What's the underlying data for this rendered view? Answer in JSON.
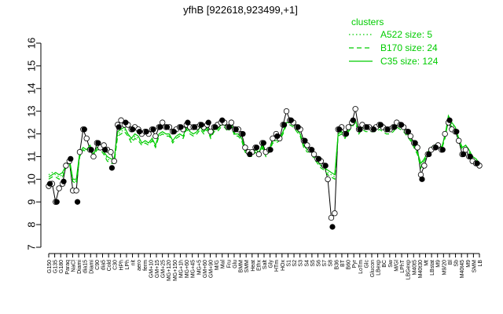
{
  "chart_data": {
    "type": "line",
    "title": "yfhB [922618,923499,+1]",
    "ylim": [
      7,
      16
    ],
    "y_ticks": [
      7,
      8,
      9,
      10,
      11,
      12,
      13,
      14,
      15,
      16
    ],
    "x_tick_labels": [
      "G150",
      "G135",
      "G180",
      "Paraq",
      "NaCl",
      "Diami",
      "dia15",
      "Diami",
      "C90",
      "dia5",
      "Cold",
      "C30",
      "HPh",
      "LPh",
      "nit",
      "aero",
      "ferm",
      "GM+10",
      "GM+15",
      "GM+25",
      "MG+120",
      "MG+150",
      "MG+1h",
      "MG+60",
      "MG+45",
      "MG+5",
      "GM+60",
      "GM+90",
      "M/G",
      "Mal",
      "Fru",
      "Glu",
      "BMM",
      "SMM",
      "Heat",
      "Ethx",
      "Salt",
      "Gly",
      "HTm",
      "HOx",
      "S1",
      "S2",
      "S3",
      "S4",
      "S5",
      "S6",
      "S7",
      "S8",
      "B36",
      "BT",
      "B60",
      "Pyr",
      "LoTm",
      "Glc",
      "Glucon",
      "LBexp",
      "BC",
      "Sw",
      "M/Gl",
      "LPhT",
      "LBGexp",
      "M40t5",
      "M40t30",
      "Mt",
      "LBstat",
      "M9",
      "M9/20",
      "Bl",
      "Sb",
      "M40t45",
      "M9",
      "SMM",
      "LB"
    ],
    "legend": {
      "title": "clusters",
      "placement": "top-right",
      "entries": [
        {
          "label": "A522 size: 5",
          "style": "dotted",
          "color": "#00cc00"
        },
        {
          "label": "B170 size: 24",
          "style": "dashed",
          "color": "#00cc00"
        },
        {
          "label": "C35 size: 124",
          "style": "solid",
          "color": "#00cc00"
        }
      ]
    },
    "series": [
      {
        "name": "yfhB",
        "color": "#000000",
        "values": [
          9.7,
          9.8,
          9.0,
          9.6,
          9.8,
          10.6,
          10.8,
          9.5,
          9.5,
          11.2,
          12.2,
          11.8,
          11.3,
          11.0,
          11.6,
          11.4,
          11.5,
          11.3,
          11.2,
          10.8,
          12.4,
          12.6,
          12.4,
          12.4,
          12.2,
          12.3,
          12.2,
          12.0,
          12.1,
          12.0,
          12.2,
          11.9,
          12.3,
          12.5,
          12.3,
          12.3,
          12.1,
          12.2,
          12.3,
          12.2,
          12.4,
          12.3,
          12.3,
          12.3,
          12.4,
          12.3,
          12.4,
          12.1,
          12.3,
          12.4,
          12.5,
          12.5,
          12.3,
          12.5,
          12.2,
          12.2,
          12.0,
          11.4,
          11.2,
          11.2,
          11.4,
          11.1,
          11.6,
          11.2,
          11.3,
          11.8,
          12.0,
          11.8,
          12.4,
          13.0,
          12.6,
          12.5,
          12.3,
          12.2,
          11.7,
          11.5,
          11.3,
          11.1,
          10.9,
          10.8,
          10.6,
          10.0,
          8.3,
          8.5,
          12.2,
          12.3,
          12.0,
          12.3,
          12.5,
          13.1,
          12.2,
          12.4,
          12.3,
          12.3,
          12.2,
          12.3,
          12.4,
          12.3,
          12.2,
          12.2,
          12.3,
          12.5,
          12.4,
          12.3,
          12.1,
          11.9,
          11.6,
          11.4,
          10.2,
          10.6,
          11.1,
          11.3,
          11.4,
          11.5,
          11.3,
          12.0,
          12.5,
          12.2,
          12.1,
          11.7,
          11.1,
          11.3,
          11.0,
          10.8,
          10.7,
          10.6
        ],
        "highlight_values": [
          9.8,
          9.9,
          9.0,
          9.7,
          9.9,
          10.7,
          10.9,
          9.6,
          9.0,
          11.1,
          12.2,
          11.7,
          11.3,
          11.0,
          11.6,
          11.5,
          11.3,
          10.9,
          10.5,
          10.6,
          12.3,
          12.7,
          12.5,
          12.4,
          12.2,
          12.3,
          12.1,
          12.0,
          12.1,
          11.9,
          12.2,
          11.8,
          12.3,
          12.6,
          12.3,
          12.3,
          12.1,
          12.2,
          12.3,
          12.2,
          12.5,
          12.3,
          12.3,
          12.3,
          12.4,
          12.3,
          12.5,
          12.1,
          12.3,
          12.4,
          12.6,
          12.5,
          12.3,
          12.5,
          12.2,
          12.2,
          12.0,
          11.3,
          11.1,
          11.2,
          11.4,
          11.0,
          11.6,
          11.2,
          11.3,
          11.8,
          11.9,
          11.8,
          12.4,
          13.2,
          12.6,
          12.5,
          12.3,
          12.2,
          11.7,
          11.5,
          11.3,
          11.1,
          10.9,
          10.8,
          10.6,
          9.9,
          7.9,
          8.4,
          12.2,
          12.3,
          12.0,
          12.3,
          12.6,
          13.2,
          12.2,
          12.4,
          12.3,
          12.3,
          12.2,
          12.3,
          12.4,
          12.3,
          12.2,
          12.2,
          12.3,
          12.5,
          12.4,
          12.3,
          12.1,
          11.9,
          11.6,
          11.3,
          10.0,
          10.6,
          11.1,
          11.3,
          11.4,
          11.5,
          11.3,
          12.0,
          12.6,
          12.2,
          12.1,
          11.7,
          11.1,
          11.3,
          11.0,
          10.8,
          10.7,
          10.6
        ]
      },
      {
        "name": "C35",
        "color": "#00cc00",
        "style": "solid",
        "values": [
          10.1,
          10.2,
          10.3,
          10.2,
          10.3,
          10.6,
          10.9,
          10.0,
          10.0,
          11.2,
          11.4,
          11.3,
          11.5,
          11.1,
          11.4,
          11.5,
          11.2,
          11.0,
          10.9,
          10.9,
          12.1,
          12.2,
          12.3,
          12.0,
          11.8,
          12.0,
          11.9,
          11.6,
          11.7,
          11.6,
          11.8,
          11.5,
          12.0,
          12.1,
          12.0,
          12.0,
          11.7,
          11.9,
          12.0,
          11.9,
          12.3,
          12.1,
          12.0,
          12.1,
          12.3,
          12.1,
          12.3,
          11.9,
          12.2,
          12.2,
          12.4,
          12.4,
          12.2,
          12.4,
          12.0,
          12.0,
          11.8,
          11.4,
          11.2,
          11.1,
          11.3,
          11.2,
          11.5,
          11.1,
          11.3,
          11.7,
          11.7,
          11.8,
          12.1,
          12.5,
          12.5,
          12.4,
          12.2,
          12.0,
          11.5,
          11.3,
          11.3,
          11.0,
          10.8,
          10.6,
          10.5,
          10.4,
          10.3,
          10.2,
          12.0,
          12.1,
          11.9,
          12.2,
          12.4,
          12.6,
          12.1,
          12.3,
          12.2,
          12.2,
          12.2,
          12.2,
          12.3,
          12.2,
          12.1,
          12.1,
          12.2,
          12.4,
          12.3,
          12.2,
          12.0,
          11.8,
          11.5,
          11.2,
          10.7,
          10.9,
          11.2,
          11.4,
          11.5,
          11.6,
          11.4,
          11.9,
          12.8,
          12.5,
          12.3,
          11.8,
          11.4,
          11.5,
          11.3,
          11.0,
          10.9,
          10.7
        ]
      },
      {
        "name": "B170",
        "color": "#00cc00",
        "style": "dashed",
        "values": [
          10.0,
          10.1,
          10.1,
          10.0,
          10.1,
          10.5,
          10.7,
          9.9,
          9.8,
          11.0,
          11.3,
          11.2,
          11.3,
          11.0,
          11.3,
          11.3,
          11.1,
          10.8,
          10.7,
          10.7,
          11.9,
          12.0,
          12.1,
          11.9,
          11.6,
          11.8,
          11.7,
          11.5,
          11.6,
          11.5,
          11.7,
          11.4,
          11.9,
          12.0,
          11.9,
          11.9,
          11.6,
          11.8,
          11.9,
          11.8,
          12.2,
          12.0,
          11.9,
          12.0,
          12.2,
          12.0,
          12.2,
          11.8,
          12.1,
          12.1,
          12.3,
          12.3,
          12.1,
          12.3,
          11.9,
          11.9,
          11.7,
          11.2,
          11.0,
          11.0,
          11.2,
          11.0,
          11.4,
          11.0,
          11.2,
          11.6,
          11.6,
          11.7,
          12.0,
          12.4,
          12.4,
          12.3,
          12.1,
          11.9,
          11.4,
          11.2,
          11.2,
          10.9,
          10.7,
          10.5,
          10.4,
          10.2,
          10.1,
          10.0,
          11.9,
          12.0,
          11.8,
          12.1,
          12.3,
          12.5,
          12.0,
          12.2,
          12.1,
          12.1,
          12.1,
          12.1,
          12.2,
          12.1,
          12.0,
          12.0,
          12.1,
          12.3,
          12.2,
          12.1,
          11.9,
          11.7,
          11.4,
          11.1,
          10.5,
          10.8,
          11.1,
          11.3,
          11.4,
          11.5,
          11.3,
          11.8,
          12.6,
          12.3,
          12.2,
          11.7,
          11.3,
          11.4,
          11.2,
          10.9,
          10.8,
          10.6
        ]
      },
      {
        "name": "A522",
        "color": "#00cc00",
        "style": "dotted",
        "values": [
          10.2,
          10.3,
          10.2,
          10.1,
          10.2,
          10.6,
          10.8,
          10.0,
          9.9,
          11.1,
          11.4,
          11.3,
          11.4,
          11.1,
          11.4,
          11.4,
          11.2,
          10.9,
          10.8,
          10.8,
          12.0,
          12.1,
          12.2,
          12.0,
          11.7,
          11.9,
          11.8,
          11.6,
          11.7,
          11.6,
          11.8,
          11.5,
          12.0,
          12.1,
          12.0,
          12.0,
          11.7,
          11.9,
          12.0,
          11.9,
          12.3,
          12.1,
          12.0,
          12.1,
          12.3,
          12.1,
          12.3,
          11.9,
          12.2,
          12.2,
          12.4,
          12.4,
          12.2,
          12.4,
          12.0,
          12.0,
          11.8,
          11.3,
          11.1,
          11.1,
          11.3,
          11.1,
          11.5,
          11.1,
          11.3,
          11.7,
          11.7,
          11.8,
          12.1,
          12.5,
          12.5,
          12.4,
          12.2,
          12.0,
          11.5,
          11.3,
          11.3,
          11.0,
          10.8,
          10.6,
          10.5,
          10.3,
          10.2,
          10.1,
          12.0,
          12.1,
          11.9,
          12.2,
          12.4,
          12.6,
          12.1,
          12.3,
          12.2,
          12.2,
          12.2,
          12.2,
          12.3,
          12.2,
          12.1,
          12.1,
          12.2,
          12.4,
          12.3,
          12.2,
          12.0,
          11.8,
          11.5,
          11.2,
          10.6,
          10.9,
          11.2,
          11.4,
          11.5,
          11.6,
          11.4,
          11.9,
          12.7,
          12.4,
          12.3,
          11.8,
          11.4,
          11.5,
          11.3,
          11.0,
          10.9,
          10.7
        ]
      }
    ]
  }
}
